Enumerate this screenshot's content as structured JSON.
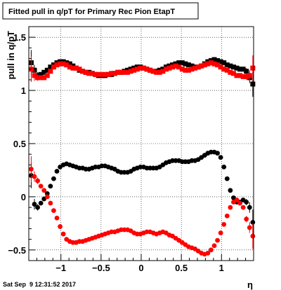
{
  "chart_data": {
    "type": "scatter",
    "title": "Fitted pull in q/pT for Primary Rec Pion EtapT",
    "xlabel": "η",
    "ylabel": "pull in q/pT",
    "xlim": [
      -1.4,
      1.4
    ],
    "ylim": [
      -0.6,
      1.6
    ],
    "grid": true,
    "x_ticks": [
      -1,
      -0.5,
      0,
      0.5,
      1
    ],
    "x_tick_labels": [
      "−1",
      "−0.5",
      "0",
      "0.5",
      "1"
    ],
    "y_ticks": [
      -0.5,
      0,
      0.5,
      1,
      1.5
    ],
    "y_tick_labels": [
      "−0.5",
      "0",
      "0.5",
      "1",
      "1.5"
    ],
    "series": [
      {
        "color": "#000000",
        "marker": "square",
        "x": [
          -1.37,
          -1.33,
          -1.29,
          -1.25,
          -1.21,
          -1.17,
          -1.13,
          -1.09,
          -1.05,
          -1.01,
          -0.97,
          -0.93,
          -0.89,
          -0.85,
          -0.81,
          -0.77,
          -0.73,
          -0.69,
          -0.65,
          -0.61,
          -0.57,
          -0.53,
          -0.49,
          -0.45,
          -0.41,
          -0.37,
          -0.33,
          -0.29,
          -0.25,
          -0.21,
          -0.17,
          -0.13,
          -0.09,
          -0.05,
          -0.01,
          0.03,
          0.07,
          0.11,
          0.15,
          0.19,
          0.23,
          0.27,
          0.31,
          0.35,
          0.39,
          0.43,
          0.47,
          0.51,
          0.55,
          0.59,
          0.63,
          0.67,
          0.71,
          0.75,
          0.79,
          0.83,
          0.87,
          0.91,
          0.95,
          0.99,
          1.03,
          1.07,
          1.11,
          1.15,
          1.19,
          1.23,
          1.27,
          1.31,
          1.35,
          1.39
        ],
        "y": [
          1.26,
          1.19,
          1.14,
          1.15,
          1.17,
          1.19,
          1.22,
          1.24,
          1.26,
          1.27,
          1.27,
          1.26,
          1.25,
          1.23,
          1.21,
          1.19,
          1.18,
          1.17,
          1.17,
          1.16,
          1.15,
          1.14,
          1.14,
          1.14,
          1.15,
          1.15,
          1.16,
          1.17,
          1.17,
          1.18,
          1.19,
          1.2,
          1.21,
          1.22,
          1.22,
          1.21,
          1.2,
          1.19,
          1.18,
          1.18,
          1.19,
          1.2,
          1.22,
          1.23,
          1.24,
          1.25,
          1.26,
          1.26,
          1.25,
          1.24,
          1.23,
          1.22,
          1.22,
          1.23,
          1.25,
          1.27,
          1.28,
          1.29,
          1.28,
          1.27,
          1.26,
          1.24,
          1.23,
          1.22,
          1.21,
          1.2,
          1.2,
          1.18,
          1.12,
          1.06
        ],
        "err": [
          0.12,
          0.05,
          0.03,
          0.02,
          0.02,
          0.02,
          0.02,
          0.02,
          0.02,
          0.02,
          0.02,
          0.02,
          0.02,
          0.02,
          0.02,
          0.02,
          0.02,
          0.02,
          0.02,
          0.02,
          0.02,
          0.02,
          0.02,
          0.02,
          0.02,
          0.02,
          0.02,
          0.02,
          0.02,
          0.02,
          0.02,
          0.02,
          0.02,
          0.02,
          0.02,
          0.02,
          0.02,
          0.02,
          0.02,
          0.02,
          0.02,
          0.02,
          0.02,
          0.02,
          0.02,
          0.02,
          0.02,
          0.02,
          0.02,
          0.02,
          0.02,
          0.02,
          0.02,
          0.02,
          0.02,
          0.02,
          0.02,
          0.02,
          0.02,
          0.02,
          0.02,
          0.02,
          0.02,
          0.02,
          0.02,
          0.02,
          0.02,
          0.03,
          0.05,
          0.12
        ]
      },
      {
        "color": "#ff0000",
        "marker": "square",
        "x": [
          -1.37,
          -1.33,
          -1.29,
          -1.25,
          -1.21,
          -1.17,
          -1.13,
          -1.09,
          -1.05,
          -1.01,
          -0.97,
          -0.93,
          -0.89,
          -0.85,
          -0.81,
          -0.77,
          -0.73,
          -0.69,
          -0.65,
          -0.61,
          -0.57,
          -0.53,
          -0.49,
          -0.45,
          -0.41,
          -0.37,
          -0.33,
          -0.29,
          -0.25,
          -0.21,
          -0.17,
          -0.13,
          -0.09,
          -0.05,
          -0.01,
          0.03,
          0.07,
          0.11,
          0.15,
          0.19,
          0.23,
          0.27,
          0.31,
          0.35,
          0.39,
          0.43,
          0.47,
          0.51,
          0.55,
          0.59,
          0.63,
          0.67,
          0.71,
          0.75,
          0.79,
          0.83,
          0.87,
          0.91,
          0.95,
          0.99,
          1.03,
          1.07,
          1.11,
          1.15,
          1.19,
          1.23,
          1.27,
          1.31,
          1.35,
          1.39
        ],
        "y": [
          1.2,
          1.14,
          1.12,
          1.12,
          1.12,
          1.14,
          1.18,
          1.22,
          1.24,
          1.25,
          1.25,
          1.24,
          1.22,
          1.21,
          1.21,
          1.2,
          1.18,
          1.17,
          1.16,
          1.16,
          1.15,
          1.15,
          1.15,
          1.15,
          1.15,
          1.16,
          1.16,
          1.17,
          1.17,
          1.17,
          1.17,
          1.18,
          1.19,
          1.2,
          1.21,
          1.21,
          1.2,
          1.19,
          1.18,
          1.17,
          1.17,
          1.18,
          1.2,
          1.21,
          1.22,
          1.23,
          1.22,
          1.2,
          1.19,
          1.19,
          1.2,
          1.21,
          1.22,
          1.23,
          1.24,
          1.25,
          1.26,
          1.25,
          1.24,
          1.22,
          1.2,
          1.19,
          1.17,
          1.16,
          1.14,
          1.14,
          1.13,
          1.13,
          1.14,
          1.21
        ],
        "err": [
          0.12,
          0.05,
          0.03,
          0.02,
          0.02,
          0.02,
          0.02,
          0.02,
          0.02,
          0.02,
          0.02,
          0.02,
          0.02,
          0.02,
          0.02,
          0.02,
          0.02,
          0.02,
          0.02,
          0.02,
          0.02,
          0.02,
          0.02,
          0.02,
          0.02,
          0.02,
          0.02,
          0.02,
          0.02,
          0.02,
          0.02,
          0.02,
          0.02,
          0.02,
          0.02,
          0.02,
          0.02,
          0.02,
          0.02,
          0.02,
          0.02,
          0.02,
          0.02,
          0.02,
          0.02,
          0.02,
          0.02,
          0.02,
          0.02,
          0.02,
          0.02,
          0.02,
          0.02,
          0.02,
          0.02,
          0.02,
          0.02,
          0.02,
          0.02,
          0.02,
          0.02,
          0.02,
          0.02,
          0.02,
          0.02,
          0.02,
          0.02,
          0.03,
          0.05,
          0.12
        ]
      },
      {
        "color": "#000000",
        "marker": "circle",
        "x": [
          -1.37,
          -1.33,
          -1.29,
          -1.25,
          -1.21,
          -1.17,
          -1.13,
          -1.09,
          -1.05,
          -1.01,
          -0.97,
          -0.93,
          -0.89,
          -0.85,
          -0.81,
          -0.77,
          -0.73,
          -0.69,
          -0.65,
          -0.61,
          -0.57,
          -0.53,
          -0.49,
          -0.45,
          -0.41,
          -0.37,
          -0.33,
          -0.29,
          -0.25,
          -0.21,
          -0.17,
          -0.13,
          -0.09,
          -0.05,
          -0.01,
          0.03,
          0.07,
          0.11,
          0.15,
          0.19,
          0.23,
          0.27,
          0.31,
          0.35,
          0.39,
          0.43,
          0.47,
          0.51,
          0.55,
          0.59,
          0.63,
          0.67,
          0.71,
          0.75,
          0.79,
          0.83,
          0.87,
          0.91,
          0.95,
          0.99,
          1.03,
          1.07,
          1.11,
          1.15,
          1.19,
          1.23,
          1.27,
          1.31,
          1.35,
          1.39
        ],
        "y": [
          0.2,
          -0.07,
          -0.1,
          -0.06,
          -0.02,
          0.03,
          0.1,
          0.17,
          0.24,
          0.28,
          0.3,
          0.31,
          0.3,
          0.29,
          0.28,
          0.27,
          0.27,
          0.26,
          0.26,
          0.27,
          0.28,
          0.28,
          0.29,
          0.29,
          0.28,
          0.27,
          0.26,
          0.24,
          0.23,
          0.23,
          0.23,
          0.24,
          0.26,
          0.27,
          0.28,
          0.28,
          0.27,
          0.27,
          0.27,
          0.27,
          0.28,
          0.3,
          0.32,
          0.33,
          0.34,
          0.34,
          0.34,
          0.33,
          0.33,
          0.33,
          0.34,
          0.34,
          0.35,
          0.37,
          0.39,
          0.41,
          0.42,
          0.42,
          0.41,
          0.37,
          0.28,
          0.17,
          0.06,
          -0.01,
          -0.05,
          -0.05,
          -0.03,
          -0.05,
          -0.1,
          -0.24
        ],
        "err": [
          0.12,
          0.05,
          0.03,
          0.02,
          0.02,
          0.02,
          0.02,
          0.02,
          0.02,
          0.02,
          0.02,
          0.02,
          0.02,
          0.02,
          0.02,
          0.02,
          0.02,
          0.02,
          0.02,
          0.02,
          0.02,
          0.02,
          0.02,
          0.02,
          0.02,
          0.02,
          0.02,
          0.02,
          0.02,
          0.02,
          0.02,
          0.02,
          0.02,
          0.02,
          0.02,
          0.02,
          0.02,
          0.02,
          0.02,
          0.02,
          0.02,
          0.02,
          0.02,
          0.02,
          0.02,
          0.02,
          0.02,
          0.02,
          0.02,
          0.02,
          0.02,
          0.02,
          0.02,
          0.02,
          0.02,
          0.02,
          0.02,
          0.02,
          0.02,
          0.02,
          0.02,
          0.02,
          0.02,
          0.02,
          0.02,
          0.02,
          0.02,
          0.03,
          0.05,
          0.12
        ]
      },
      {
        "color": "#ff0000",
        "marker": "circle",
        "x": [
          -1.37,
          -1.33,
          -1.29,
          -1.25,
          -1.21,
          -1.17,
          -1.13,
          -1.09,
          -1.05,
          -1.01,
          -0.97,
          -0.93,
          -0.89,
          -0.85,
          -0.81,
          -0.77,
          -0.73,
          -0.69,
          -0.65,
          -0.61,
          -0.57,
          -0.53,
          -0.49,
          -0.45,
          -0.41,
          -0.37,
          -0.33,
          -0.29,
          -0.25,
          -0.21,
          -0.17,
          -0.13,
          -0.09,
          -0.05,
          -0.01,
          0.03,
          0.07,
          0.11,
          0.15,
          0.19,
          0.23,
          0.27,
          0.31,
          0.35,
          0.39,
          0.43,
          0.47,
          0.51,
          0.55,
          0.59,
          0.63,
          0.67,
          0.71,
          0.75,
          0.79,
          0.83,
          0.87,
          0.91,
          0.95,
          0.99,
          1.03,
          1.07,
          1.11,
          1.15,
          1.19,
          1.23,
          1.27,
          1.31,
          1.35,
          1.39
        ],
        "y": [
          0.26,
          0.19,
          0.15,
          0.1,
          0.06,
          0.0,
          -0.06,
          -0.13,
          -0.2,
          -0.28,
          -0.35,
          -0.4,
          -0.42,
          -0.43,
          -0.43,
          -0.42,
          -0.42,
          -0.41,
          -0.4,
          -0.39,
          -0.38,
          -0.37,
          -0.36,
          -0.35,
          -0.34,
          -0.33,
          -0.33,
          -0.32,
          -0.31,
          -0.31,
          -0.31,
          -0.32,
          -0.34,
          -0.35,
          -0.35,
          -0.34,
          -0.33,
          -0.33,
          -0.34,
          -0.35,
          -0.34,
          -0.33,
          -0.34,
          -0.36,
          -0.37,
          -0.39,
          -0.41,
          -0.43,
          -0.45,
          -0.47,
          -0.48,
          -0.49,
          -0.51,
          -0.53,
          -0.54,
          -0.53,
          -0.5,
          -0.46,
          -0.41,
          -0.34,
          -0.26,
          -0.18,
          -0.1,
          -0.05,
          -0.03,
          -0.06,
          -0.1,
          -0.21,
          -0.29,
          -0.37
        ],
        "err": [
          0.12,
          0.05,
          0.03,
          0.02,
          0.02,
          0.02,
          0.02,
          0.02,
          0.02,
          0.02,
          0.02,
          0.02,
          0.02,
          0.02,
          0.02,
          0.02,
          0.02,
          0.02,
          0.02,
          0.02,
          0.02,
          0.02,
          0.02,
          0.02,
          0.02,
          0.02,
          0.02,
          0.02,
          0.02,
          0.02,
          0.02,
          0.02,
          0.02,
          0.02,
          0.02,
          0.02,
          0.02,
          0.02,
          0.02,
          0.02,
          0.02,
          0.02,
          0.02,
          0.02,
          0.02,
          0.02,
          0.02,
          0.02,
          0.02,
          0.02,
          0.02,
          0.02,
          0.02,
          0.02,
          0.02,
          0.02,
          0.02,
          0.02,
          0.02,
          0.02,
          0.02,
          0.02,
          0.02,
          0.02,
          0.02,
          0.02,
          0.02,
          0.03,
          0.05,
          0.12
        ]
      }
    ]
  },
  "footer": {
    "timestamp": "Sat Sep  9 12:31:52 2017"
  }
}
